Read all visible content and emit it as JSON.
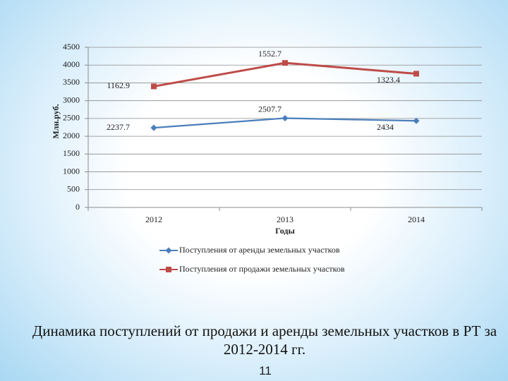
{
  "chart_data": {
    "type": "line",
    "stacked": true,
    "title": "Динамика поступлений от продажи и аренды земельных участков в РТ за 2012-2014 гг.",
    "x_label": "Годы",
    "y_label": "Млн.руб.",
    "categories": [
      "2012",
      "2013",
      "2014"
    ],
    "series": [
      {
        "name": "Поступления от аренды земельных участков",
        "color": "#4a7ebb",
        "marker": "diamond",
        "values": [
          2237.7,
          2507.7,
          2434
        ]
      },
      {
        "name": "Поступления от продажи земельных участков",
        "color": "#be4b48",
        "marker": "square",
        "values": [
          1162.9,
          1552.7,
          1323.4
        ]
      }
    ],
    "ylim": [
      0,
      4500
    ],
    "yticks": [
      0,
      500,
      1000,
      1500,
      2000,
      2500,
      3000,
      3500,
      4000,
      4500
    ],
    "grid": true
  },
  "page_number": "11"
}
